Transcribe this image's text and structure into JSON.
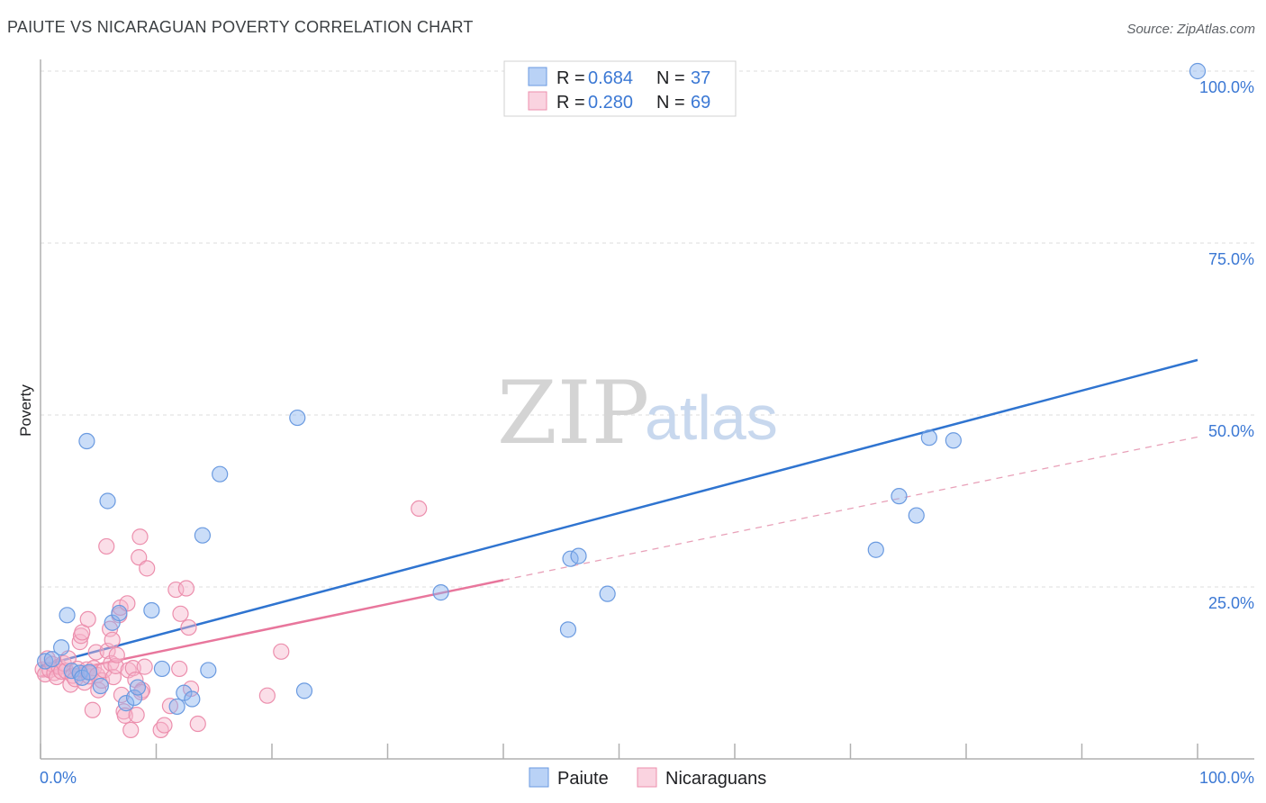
{
  "title": "PAIUTE VS NICARAGUAN POVERTY CORRELATION CHART",
  "source": "Source: ZipAtlas.com",
  "watermark": {
    "zip": "ZIP",
    "atlas": "atlas"
  },
  "chart_data": {
    "type": "scatter",
    "xlabel": "",
    "ylabel": "Poverty",
    "xlim": [
      0,
      100
    ],
    "ylim": [
      0,
      100
    ],
    "x_tick_labels": [
      {
        "value": 0,
        "label": "0.0%"
      },
      {
        "value": 100,
        "label": "100.0%"
      }
    ],
    "y_tick_labels": [
      {
        "value": 25,
        "label": "25.0%"
      },
      {
        "value": 50,
        "label": "50.0%"
      },
      {
        "value": 75,
        "label": "75.0%"
      },
      {
        "value": 100,
        "label": "100.0%"
      }
    ],
    "grid": true,
    "legend_placement": "top-center",
    "legend": [
      {
        "r_label": "R = ",
        "r_value": "0.684",
        "n_label": "N = ",
        "n_value": "37"
      },
      {
        "r_label": "R = ",
        "r_value": "0.280",
        "n_label": "N = ",
        "n_value": "69"
      }
    ],
    "series": [
      {
        "name": "Paiute",
        "color": "#8ab4f0",
        "stroke": "#6a9ae0",
        "trend": {
          "x": [
            0,
            100
          ],
          "y": [
            13.5,
            58
          ],
          "color": "#2f74d0",
          "style": "solid"
        },
        "points": [
          [
            0.4,
            14.2
          ],
          [
            1.0,
            14.5
          ],
          [
            1.8,
            16.2
          ],
          [
            2.3,
            20.9
          ],
          [
            2.7,
            12.8
          ],
          [
            3.4,
            12.5
          ],
          [
            3.6,
            11.8
          ],
          [
            4.0,
            46.2
          ],
          [
            4.2,
            12.6
          ],
          [
            5.2,
            10.6
          ],
          [
            5.8,
            37.5
          ],
          [
            6.2,
            19.8
          ],
          [
            6.8,
            21.2
          ],
          [
            7.4,
            8.1
          ],
          [
            8.1,
            8.9
          ],
          [
            8.4,
            10.4
          ],
          [
            9.6,
            21.6
          ],
          [
            10.5,
            13.1
          ],
          [
            11.8,
            7.6
          ],
          [
            12.4,
            9.6
          ],
          [
            13.1,
            8.7
          ],
          [
            14.0,
            32.5
          ],
          [
            14.5,
            12.9
          ],
          [
            15.5,
            41.4
          ],
          [
            22.2,
            49.6
          ],
          [
            22.8,
            9.9
          ],
          [
            34.6,
            24.2
          ],
          [
            45.6,
            18.8
          ],
          [
            45.8,
            29.1
          ],
          [
            46.5,
            29.5
          ],
          [
            49.0,
            24.0
          ],
          [
            72.2,
            30.4
          ],
          [
            74.2,
            38.2
          ],
          [
            75.7,
            35.4
          ],
          [
            76.8,
            46.7
          ],
          [
            78.9,
            46.3
          ],
          [
            100.0,
            100.0
          ]
        ]
      },
      {
        "name": "Nicaraguans",
        "color": "#f7b6cb",
        "stroke": "#ec8fad",
        "trend": {
          "x": [
            0,
            40
          ],
          "y": [
            12.0,
            26.0
          ],
          "color": "#e8769c",
          "style": "solid"
        },
        "trend_ext": {
          "x": [
            40,
            100
          ],
          "y": [
            26.0,
            46.8
          ],
          "color": "#e8a0b8",
          "style": "dashed"
        },
        "points": [
          [
            0.2,
            13.0
          ],
          [
            0.4,
            12.3
          ],
          [
            0.6,
            14.6
          ],
          [
            0.8,
            12.9
          ],
          [
            1.0,
            13.8
          ],
          [
            1.2,
            12.5
          ],
          [
            1.4,
            11.9
          ],
          [
            1.6,
            13.4
          ],
          [
            1.8,
            12.7
          ],
          [
            2.0,
            13.9
          ],
          [
            2.2,
            12.8
          ],
          [
            2.4,
            14.6
          ],
          [
            2.6,
            10.8
          ],
          [
            2.8,
            12.1
          ],
          [
            3.0,
            11.6
          ],
          [
            3.2,
            13.1
          ],
          [
            3.4,
            17.0
          ],
          [
            3.5,
            17.9
          ],
          [
            3.6,
            18.4
          ],
          [
            3.8,
            11.1
          ],
          [
            4.0,
            13.0
          ],
          [
            4.1,
            20.3
          ],
          [
            4.2,
            12.0
          ],
          [
            4.4,
            12.6
          ],
          [
            4.5,
            7.1
          ],
          [
            4.6,
            13.2
          ],
          [
            4.8,
            15.5
          ],
          [
            4.9,
            12.2
          ],
          [
            5.0,
            10.0
          ],
          [
            5.3,
            11.4
          ],
          [
            5.5,
            12.9
          ],
          [
            5.7,
            30.9
          ],
          [
            5.8,
            15.7
          ],
          [
            6.0,
            18.9
          ],
          [
            6.1,
            13.9
          ],
          [
            6.2,
            17.3
          ],
          [
            6.3,
            11.9
          ],
          [
            6.5,
            13.5
          ],
          [
            6.6,
            15.1
          ],
          [
            6.8,
            20.9
          ],
          [
            6.9,
            22.0
          ],
          [
            7.0,
            9.3
          ],
          [
            7.2,
            6.9
          ],
          [
            7.3,
            6.3
          ],
          [
            7.5,
            22.6
          ],
          [
            7.6,
            12.9
          ],
          [
            7.8,
            4.2
          ],
          [
            8.0,
            13.2
          ],
          [
            8.2,
            11.5
          ],
          [
            8.3,
            6.4
          ],
          [
            8.5,
            29.3
          ],
          [
            8.6,
            32.3
          ],
          [
            8.8,
            10.0
          ],
          [
            9.0,
            13.4
          ],
          [
            9.2,
            27.7
          ],
          [
            10.4,
            4.2
          ],
          [
            10.7,
            4.9
          ],
          [
            11.2,
            7.7
          ],
          [
            11.7,
            24.6
          ],
          [
            12.0,
            13.1
          ],
          [
            12.1,
            21.1
          ],
          [
            12.6,
            24.8
          ],
          [
            12.8,
            19.1
          ],
          [
            13.0,
            10.2
          ],
          [
            13.6,
            5.1
          ],
          [
            19.6,
            9.2
          ],
          [
            20.8,
            15.6
          ],
          [
            32.7,
            36.4
          ],
          [
            8.7,
            9.7
          ]
        ]
      }
    ]
  }
}
